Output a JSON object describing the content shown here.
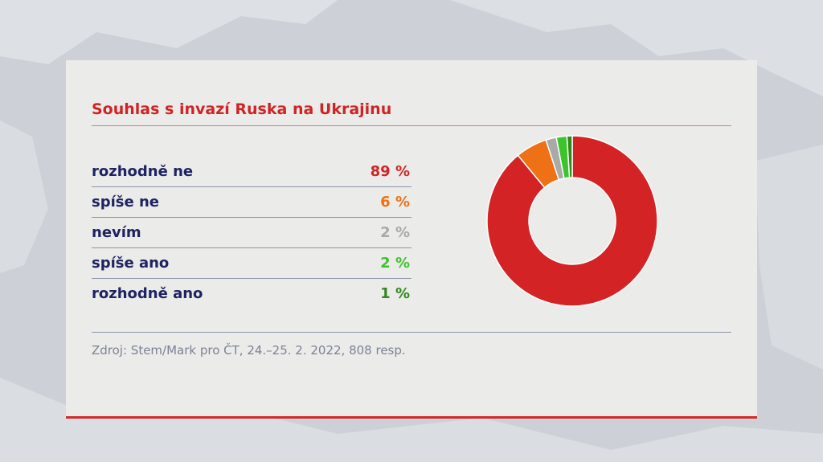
{
  "colors": {
    "rozhodne_ne": "#d42324",
    "spise_ne": "#ee7116",
    "nevim": "#a9a9a9",
    "spise_ano": "#3ec42a",
    "rozhodne_ano": "#2f8a1c"
  },
  "chart_data": {
    "type": "pie",
    "title": "Souhlas s invazí Ruska na Ukrajinu",
    "categories": [
      "rozhodně ne",
      "spíše ne",
      "nevím",
      "spíše ano",
      "rozhodně ano"
    ],
    "values": [
      89,
      6,
      2,
      2,
      1
    ],
    "value_labels": [
      "89 %",
      "6 %",
      "2 %",
      "2 %",
      "1 %"
    ],
    "colors": [
      "#d42324",
      "#ee7116",
      "#a9a9a9",
      "#3ec42a",
      "#2f8a1c"
    ],
    "style": "donut"
  },
  "source": "Zdroj: Stem/Mark pro ČT, 24.–25. 2. 2022, 808 resp."
}
